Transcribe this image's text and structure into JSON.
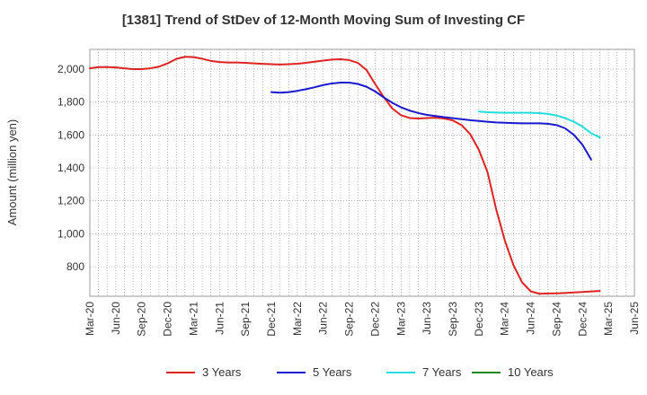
{
  "chart_data": {
    "type": "line",
    "title": "[1381]  Trend of StDev of 12-Month Moving Sum of Investing CF",
    "xlabel": "",
    "ylabel": "Amount (million yen)",
    "ylim": [
      620,
      2120
    ],
    "yticks": [
      800,
      1000,
      1200,
      1400,
      1600,
      1800,
      2000
    ],
    "ytick_labels": [
      "800",
      "1,000",
      "1,200",
      "1,400",
      "1,600",
      "1,800",
      "2,000"
    ],
    "x_categories": [
      "Mar-20",
      "Jun-20",
      "Sep-20",
      "Dec-20",
      "Mar-21",
      "Jun-21",
      "Sep-21",
      "Dec-21",
      "Mar-22",
      "Jun-22",
      "Sep-22",
      "Dec-22",
      "Mar-23",
      "Jun-23",
      "Sep-23",
      "Dec-23",
      "Mar-24",
      "Jun-24",
      "Sep-24",
      "Dec-24",
      "Mar-25",
      "Jun-25"
    ],
    "grid": true,
    "legend_position": "bottom",
    "series": [
      {
        "name": "3 Years",
        "color": "#dd2222",
        "values": [
          [
            "Mar-20",
            2005
          ],
          [
            "Apr-20",
            2012
          ],
          [
            "May-20",
            2013
          ],
          [
            "Jun-20",
            2010
          ],
          [
            "Jul-20",
            2005
          ],
          [
            "Aug-20",
            2000
          ],
          [
            "Sep-20",
            2000
          ],
          [
            "Oct-20",
            2005
          ],
          [
            "Nov-20",
            2015
          ],
          [
            "Dec-20",
            2035
          ],
          [
            "Jan-21",
            2062
          ],
          [
            "Feb-21",
            2075
          ],
          [
            "Mar-21",
            2073
          ],
          [
            "Apr-21",
            2063
          ],
          [
            "May-21",
            2050
          ],
          [
            "Jun-21",
            2043
          ],
          [
            "Jul-21",
            2040
          ],
          [
            "Aug-21",
            2040
          ],
          [
            "Sep-21",
            2038
          ],
          [
            "Oct-21",
            2035
          ],
          [
            "Nov-21",
            2032
          ],
          [
            "Dec-21",
            2030
          ],
          [
            "Jan-22",
            2028
          ],
          [
            "Feb-22",
            2030
          ],
          [
            "Mar-22",
            2033
          ],
          [
            "Apr-22",
            2038
          ],
          [
            "May-22",
            2045
          ],
          [
            "Jun-22",
            2052
          ],
          [
            "Jul-22",
            2058
          ],
          [
            "Aug-22",
            2060
          ],
          [
            "Sep-22",
            2055
          ],
          [
            "Oct-22",
            2038
          ],
          [
            "Nov-22",
            1995
          ],
          [
            "Dec-22",
            1910
          ],
          [
            "Jan-23",
            1830
          ],
          [
            "Feb-23",
            1760
          ],
          [
            "Mar-23",
            1720
          ],
          [
            "Apr-23",
            1703
          ],
          [
            "May-23",
            1700
          ],
          [
            "Jun-23",
            1703
          ],
          [
            "Jul-23",
            1705
          ],
          [
            "Aug-23",
            1700
          ],
          [
            "Sep-23",
            1688
          ],
          [
            "Oct-23",
            1660
          ],
          [
            "Nov-23",
            1605
          ],
          [
            "Dec-23",
            1510
          ],
          [
            "Jan-24",
            1375
          ],
          [
            "Feb-24",
            1150
          ],
          [
            "Mar-24",
            960
          ],
          [
            "Apr-24",
            810
          ],
          [
            "May-24",
            705
          ],
          [
            "Jun-24",
            650
          ],
          [
            "Jul-24",
            635
          ],
          [
            "Aug-24",
            637
          ],
          [
            "Sep-24",
            638
          ],
          [
            "Oct-24",
            640
          ],
          [
            "Nov-24",
            643
          ],
          [
            "Dec-24",
            646
          ],
          [
            "Jan-25",
            649
          ],
          [
            "Feb-25",
            652
          ]
        ]
      },
      {
        "name": "5 Years",
        "color": "#1a1acc",
        "values": [
          [
            "Dec-21",
            1860
          ],
          [
            "Jan-22",
            1857
          ],
          [
            "Feb-22",
            1860
          ],
          [
            "Mar-22",
            1868
          ],
          [
            "Apr-22",
            1878
          ],
          [
            "May-22",
            1890
          ],
          [
            "Jun-22",
            1903
          ],
          [
            "Jul-22",
            1913
          ],
          [
            "Aug-22",
            1918
          ],
          [
            "Sep-22",
            1918
          ],
          [
            "Oct-22",
            1910
          ],
          [
            "Nov-22",
            1893
          ],
          [
            "Dec-22",
            1865
          ],
          [
            "Jan-23",
            1828
          ],
          [
            "Feb-23",
            1795
          ],
          [
            "Mar-23",
            1768
          ],
          [
            "Apr-23",
            1748
          ],
          [
            "May-23",
            1733
          ],
          [
            "Jun-23",
            1722
          ],
          [
            "Jul-23",
            1715
          ],
          [
            "Aug-23",
            1708
          ],
          [
            "Sep-23",
            1702
          ],
          [
            "Oct-23",
            1696
          ],
          [
            "Nov-23",
            1690
          ],
          [
            "Dec-23",
            1685
          ],
          [
            "Jan-24",
            1680
          ],
          [
            "Feb-24",
            1676
          ],
          [
            "Mar-24",
            1674
          ],
          [
            "Apr-24",
            1672
          ],
          [
            "May-24",
            1671
          ],
          [
            "Jun-24",
            1671
          ],
          [
            "Jul-24",
            1671
          ],
          [
            "Aug-24",
            1668
          ],
          [
            "Sep-24",
            1660
          ],
          [
            "Oct-24",
            1640
          ],
          [
            "Nov-24",
            1600
          ],
          [
            "Dec-24",
            1540
          ],
          [
            "Jan-25",
            1450
          ]
        ]
      },
      {
        "name": "7 Years",
        "color": "#22dddd",
        "values": [
          [
            "Dec-23",
            1742
          ],
          [
            "Jan-24",
            1738
          ],
          [
            "Feb-24",
            1736
          ],
          [
            "Mar-24",
            1735
          ],
          [
            "Apr-24",
            1735
          ],
          [
            "May-24",
            1735
          ],
          [
            "Jun-24",
            1735
          ],
          [
            "Jul-24",
            1733
          ],
          [
            "Aug-24",
            1728
          ],
          [
            "Sep-24",
            1718
          ],
          [
            "Oct-24",
            1702
          ],
          [
            "Nov-24",
            1680
          ],
          [
            "Dec-24",
            1650
          ],
          [
            "Jan-25",
            1610
          ],
          [
            "Feb-25",
            1585
          ]
        ]
      },
      {
        "name": "10 Years",
        "color": "#228822",
        "values": []
      }
    ]
  }
}
